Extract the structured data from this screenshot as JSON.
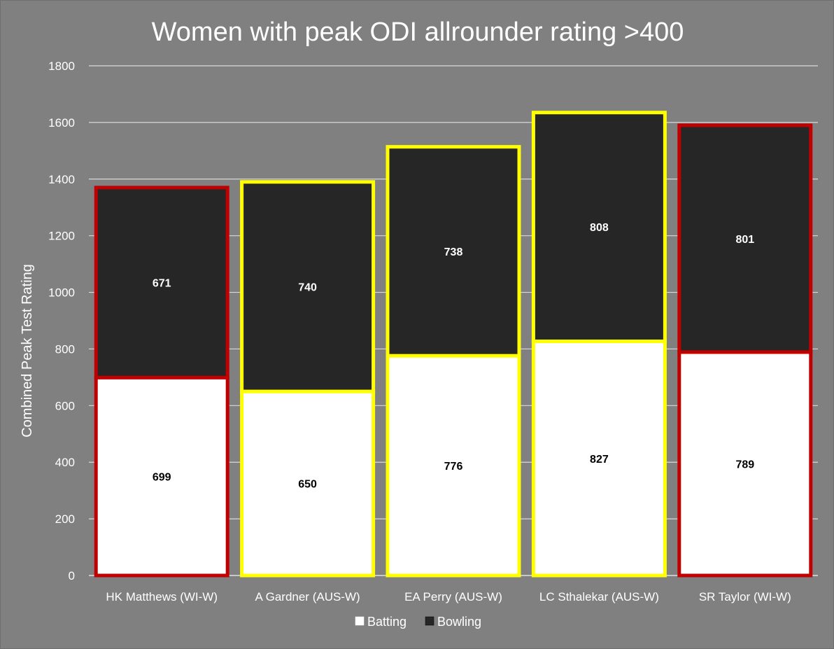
{
  "chart_data": {
    "type": "bar",
    "stacked": true,
    "title": "Women with peak ODI allrounder rating >400",
    "xlabel": "",
    "ylabel": "Combined Peak Test Rating",
    "ylim": [
      0,
      1800
    ],
    "yticks": [
      0,
      200,
      400,
      600,
      800,
      1000,
      1200,
      1400,
      1600,
      1800
    ],
    "grid": true,
    "legend_position": "bottom",
    "categories": [
      "HK Matthews (WI-W)",
      "A Gardner (AUS-W)",
      "EA Perry (AUS-W)",
      "LC Sthalekar (AUS-W)",
      "SR Taylor (WI-W)"
    ],
    "series": [
      {
        "name": "Batting",
        "values": [
          699,
          650,
          776,
          827,
          789
        ],
        "color": "#ffffff"
      },
      {
        "name": "Bowling",
        "values": [
          671,
          740,
          738,
          808,
          801
        ],
        "color": "#262626"
      }
    ],
    "outline_colors": [
      "#c00000",
      "#ffff00",
      "#ffff00",
      "#ffff00",
      "#c00000"
    ],
    "colors": {
      "background": "#808080",
      "grid": "#d9d9d9",
      "text": "#ffffff",
      "batting_label": "#000000",
      "bowling_label": "#ffffff"
    }
  }
}
